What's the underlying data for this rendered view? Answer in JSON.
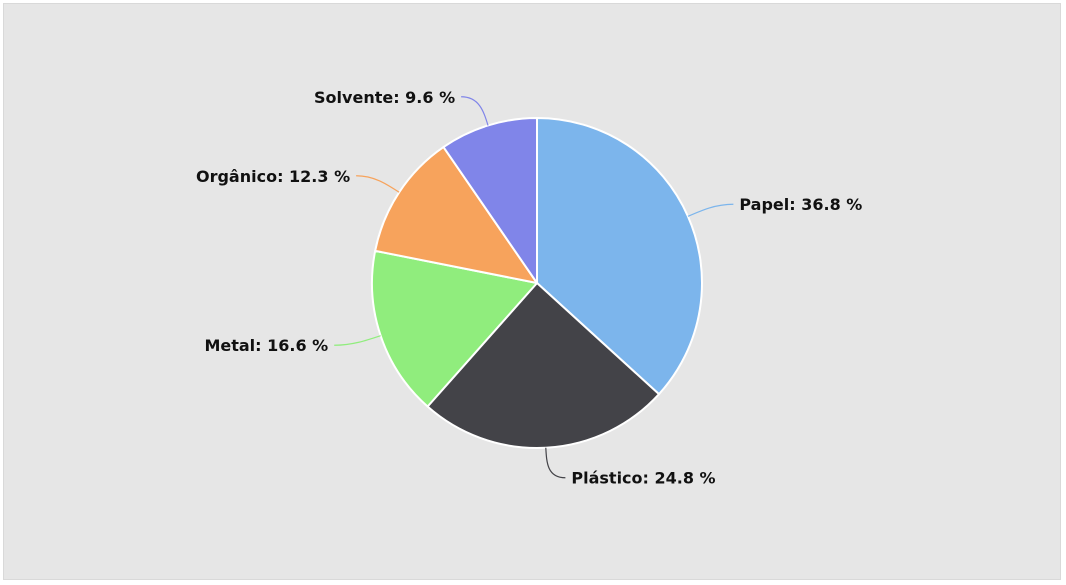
{
  "chart_data": {
    "type": "pie",
    "title": "",
    "start_angle_deg": 0,
    "direction": "clockwise",
    "slices": [
      {
        "name": "Papel",
        "value": 36.8,
        "label": "Papel: 36.8 %",
        "color": "#7cb5ec",
        "label_side": "right"
      },
      {
        "name": "Plástico",
        "value": 24.8,
        "label": "Plástico: 24.8 %",
        "color": "#434348",
        "label_side": "right"
      },
      {
        "name": "Metal",
        "value": 16.6,
        "label": "Metal: 16.6 %",
        "color": "#90ed7d",
        "label_side": "left"
      },
      {
        "name": "Orgânico",
        "value": 12.3,
        "label": "Orgânico: 12.3 %",
        "color": "#f7a35c",
        "label_side": "left"
      },
      {
        "name": "Solvente",
        "value": 9.6,
        "label": "Solvente: 9.6 %",
        "color": "#8085e9",
        "label_side": "left"
      }
    ],
    "background": "#e6e6e6",
    "slice_border_color": "#ffffff"
  }
}
